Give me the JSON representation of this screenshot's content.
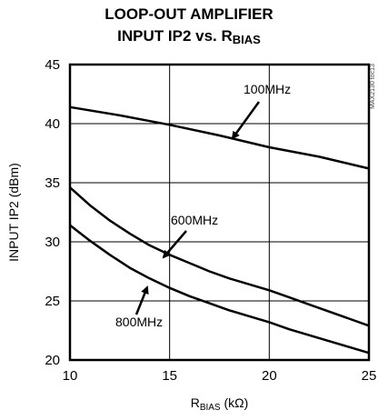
{
  "chart_data": {
    "type": "line",
    "title_line1": "LOOP-OUT AMPLIFIER",
    "title_line2_prefix": "INPUT IP2 vs. R",
    "title_line2_sub": "BIAS",
    "xlabel_prefix": "R",
    "xlabel_sub": "BIAS",
    "xlabel_suffix": " (kΩ)",
    "ylabel": "INPUT IP2 (dBm)",
    "xlim": [
      10,
      25
    ],
    "ylim": [
      20,
      45
    ],
    "xticks": [
      "10",
      "15",
      "20",
      "25"
    ],
    "yticks": [
      "20",
      "25",
      "30",
      "35",
      "40",
      "45"
    ],
    "grid": true,
    "watermark": "MAX2130 toc13",
    "series": [
      {
        "name": "100MHz",
        "x": [
          10,
          12.5,
          15,
          17.5,
          20,
          22.5,
          25
        ],
        "y": [
          41.4,
          40.7,
          39.9,
          39.0,
          38.0,
          37.2,
          36.2
        ]
      },
      {
        "name": "600MHz",
        "x": [
          10,
          11,
          12,
          13,
          14,
          15,
          16,
          17,
          18,
          19,
          20,
          21,
          22,
          23,
          24,
          25
        ],
        "y": [
          34.6,
          33.1,
          31.8,
          30.7,
          29.7,
          28.9,
          28.2,
          27.5,
          26.9,
          26.4,
          25.9,
          25.3,
          24.7,
          24.1,
          23.5,
          22.9
        ]
      },
      {
        "name": "800MHz",
        "x": [
          10,
          11,
          12,
          13,
          14,
          15,
          16,
          17,
          18,
          19,
          20,
          21,
          22,
          23,
          24,
          25
        ],
        "y": [
          31.4,
          30.1,
          28.9,
          27.8,
          26.9,
          26.1,
          25.4,
          24.8,
          24.2,
          23.7,
          23.2,
          22.6,
          22.1,
          21.6,
          21.1,
          20.6
        ]
      }
    ]
  }
}
